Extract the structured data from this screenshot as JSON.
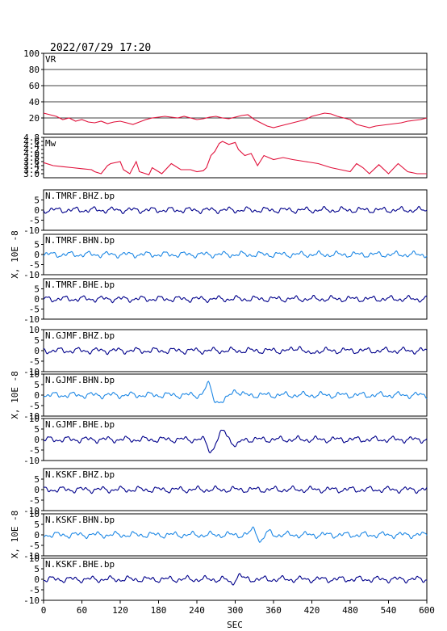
{
  "header": {
    "timestamp": "2022/07/29  17:20"
  },
  "chart_data": {
    "type": "line",
    "xlabel": "SEC",
    "xlim": [
      0,
      600
    ],
    "xticks": [
      0,
      60,
      120,
      180,
      240,
      300,
      360,
      420,
      480,
      540,
      600
    ],
    "panels": [
      {
        "label": "VR",
        "ylim": [
          0,
          100
        ],
        "yticks": [
          "20",
          "40",
          "60",
          "80",
          "100"
        ],
        "grid": true,
        "color": "#e0103a",
        "x": [
          0,
          10,
          20,
          30,
          40,
          50,
          60,
          70,
          80,
          90,
          100,
          110,
          120,
          130,
          140,
          150,
          160,
          170,
          180,
          190,
          200,
          210,
          220,
          230,
          240,
          250,
          260,
          270,
          280,
          290,
          300,
          310,
          320,
          330,
          340,
          350,
          360,
          370,
          380,
          390,
          400,
          410,
          420,
          430,
          440,
          450,
          460,
          470,
          480,
          490,
          500,
          510,
          520,
          530,
          540,
          550,
          560,
          570,
          580,
          590,
          600
        ],
        "y": [
          26,
          24,
          22,
          18,
          20,
          16,
          18,
          15,
          14,
          16,
          13,
          15,
          16,
          14,
          12,
          15,
          18,
          20,
          21,
          22,
          21,
          20,
          22,
          20,
          18,
          19,
          21,
          22,
          20,
          19,
          21,
          23,
          24,
          18,
          14,
          10,
          8,
          10,
          12,
          14,
          16,
          18,
          22,
          24,
          26,
          25,
          22,
          20,
          18,
          12,
          10,
          8,
          10,
          11,
          12,
          13,
          14,
          16,
          17,
          18,
          20
        ]
      },
      {
        "label": "Mw",
        "ylim": [
          2.8,
          4.8
        ],
        "yticks": [
          "3.0",
          "3.2",
          "3.4",
          "3.6",
          "3.8",
          "4.0",
          "4.2",
          "4.4",
          "4.6",
          "4.8"
        ],
        "grid": false,
        "color": "#e0103a",
        "x": [
          0,
          15,
          30,
          45,
          60,
          75,
          80,
          90,
          100,
          105,
          120,
          125,
          135,
          145,
          150,
          165,
          170,
          185,
          200,
          215,
          230,
          240,
          250,
          255,
          262,
          268,
          275,
          280,
          290,
          300,
          305,
          315,
          325,
          335,
          345,
          360,
          375,
          390,
          410,
          430,
          450,
          465,
          480,
          490,
          500,
          510,
          525,
          540,
          555,
          570,
          585,
          600
        ],
        "y": [
          3.55,
          3.4,
          3.35,
          3.3,
          3.25,
          3.2,
          3.1,
          3.0,
          3.4,
          3.5,
          3.6,
          3.2,
          3.0,
          3.6,
          3.1,
          2.95,
          3.3,
          3.0,
          3.5,
          3.2,
          3.2,
          3.1,
          3.15,
          3.3,
          3.9,
          4.1,
          4.5,
          4.6,
          4.45,
          4.55,
          4.2,
          3.9,
          4.0,
          3.4,
          3.9,
          3.7,
          3.8,
          3.7,
          3.6,
          3.5,
          3.3,
          3.2,
          3.1,
          3.5,
          3.3,
          3.0,
          3.45,
          3.0,
          3.5,
          3.1,
          3.0,
          3.0
        ]
      },
      {
        "label": "N.TMRF.BHZ.bp",
        "ylim": [
          -10,
          10
        ],
        "yticks": [
          "-10",
          "-5",
          "0",
          "5"
        ],
        "color": "#00008b",
        "events": []
      },
      {
        "label": "N.TMRF.BHN.bp",
        "ylim": [
          -10,
          10
        ],
        "yticks": [
          "-10",
          "-5",
          "0",
          "5"
        ],
        "color": "#1e88e5",
        "events": []
      },
      {
        "label": "N.TMRF.BHE.bp",
        "ylim": [
          -10,
          10
        ],
        "yticks": [
          "-10",
          "-5",
          "0",
          "5"
        ],
        "color": "#00008b",
        "events": []
      },
      {
        "label": "N.GJMF.BHZ.bp",
        "ylim": [
          -10,
          10
        ],
        "yticks": [
          "-10",
          "-5",
          "0",
          "5",
          "10"
        ],
        "color": "#00008b",
        "events": [
          [
            400,
            2.0
          ],
          [
            415,
            -2.0
          ]
        ]
      },
      {
        "label": "N.GJMF.BHN.bp",
        "ylim": [
          -10,
          10
        ],
        "yticks": [
          "-10",
          "-5",
          "0",
          "5",
          "10"
        ],
        "color": "#1e88e5",
        "events": [
          [
            258,
            5.0
          ],
          [
            270,
            -3.0
          ],
          [
            282,
            -3.0
          ],
          [
            300,
            2.5
          ]
        ]
      },
      {
        "label": "N.GJMF.BHE.bp",
        "ylim": [
          -10,
          10
        ],
        "yticks": [
          "-10",
          "-5",
          "0",
          "5",
          "10"
        ],
        "color": "#00008b",
        "events": [
          [
            262,
            -5.5
          ],
          [
            282,
            4.0
          ],
          [
            302,
            -3.0
          ]
        ]
      },
      {
        "label": "N.KSKF.BHZ.bp",
        "ylim": [
          -10,
          10
        ],
        "yticks": [
          "-10",
          "-5",
          "0",
          "5"
        ],
        "color": "#00008b",
        "events": []
      },
      {
        "label": "N.KSKF.BHN.bp",
        "ylim": [
          -10,
          10
        ],
        "yticks": [
          "-10",
          "-5",
          "0",
          "5",
          "10"
        ],
        "color": "#1e88e5",
        "events": [
          [
            330,
            3.0
          ],
          [
            340,
            -3.5
          ],
          [
            350,
            1.5
          ]
        ]
      },
      {
        "label": "N.KSKF.BHE.bp",
        "ylim": [
          -10,
          10
        ],
        "yticks": [
          "-10",
          "-5",
          "0",
          "5",
          "10"
        ],
        "color": "#00008b",
        "events": [
          [
            295,
            -2.0
          ],
          [
            305,
            2.0
          ]
        ]
      }
    ],
    "ylabel_groups": [
      {
        "text": "X, 10E -8",
        "panels": [
          2,
          3,
          4
        ]
      },
      {
        "text": "X, 10E -8",
        "panels": [
          5,
          6,
          7
        ]
      },
      {
        "text": "X, 10E -8",
        "panels": [
          8,
          9,
          10
        ]
      }
    ]
  }
}
